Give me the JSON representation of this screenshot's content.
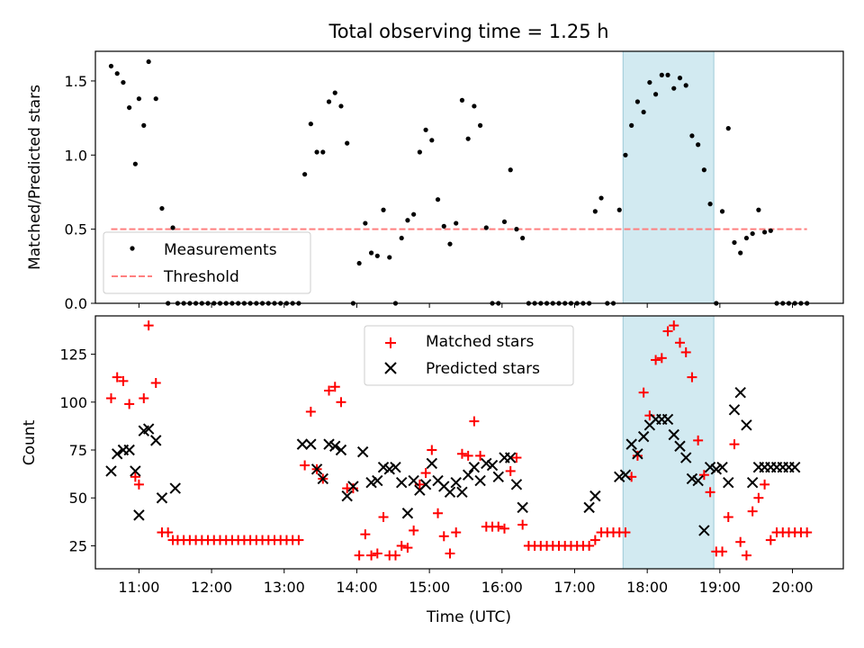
{
  "chart_data": [
    {
      "type": "scatter",
      "title": "Total observing time = 1.25 h",
      "xlabel": "",
      "ylabel": "Matched/Predicted stars",
      "xlim": [
        "10:24",
        "20:42"
      ],
      "ylim": [
        0,
        1.7
      ],
      "yticks": [
        "0.0",
        "0.5",
        "1.0",
        "1.5"
      ],
      "grid": false,
      "legend_position": "lower-left",
      "highlight_region": {
        "x_start": "17:40",
        "x_end": "18:55",
        "color": "#add8e6"
      },
      "series": [
        {
          "name": "Measurements",
          "marker": "dot",
          "color": "#000000",
          "x": [
            "10:37",
            "10:42",
            "10:47",
            "10:52",
            "10:57",
            "11:00",
            "11:04",
            "11:08",
            "11:14",
            "11:19",
            "11:24",
            "11:28",
            "11:32",
            "11:37",
            "11:42",
            "11:47",
            "11:52",
            "11:57",
            "12:02",
            "12:07",
            "12:12",
            "12:17",
            "12:22",
            "12:27",
            "12:32",
            "12:37",
            "12:42",
            "12:47",
            "12:52",
            "12:57",
            "13:02",
            "13:07",
            "13:12",
            "13:17",
            "13:22",
            "13:27",
            "13:32",
            "13:37",
            "13:42",
            "13:47",
            "13:52",
            "13:57",
            "14:02",
            "14:07",
            "14:12",
            "14:17",
            "14:22",
            "14:27",
            "14:32",
            "14:37",
            "14:42",
            "14:47",
            "14:52",
            "14:57",
            "15:02",
            "15:07",
            "15:12",
            "15:17",
            "15:22",
            "15:27",
            "15:32",
            "15:37",
            "15:42",
            "15:47",
            "15:52",
            "15:57",
            "16:02",
            "16:07",
            "16:12",
            "16:17",
            "16:22",
            "16:27",
            "16:32",
            "16:37",
            "16:42",
            "16:47",
            "16:52",
            "16:57",
            "17:02",
            "17:07",
            "17:12",
            "17:17",
            "17:22",
            "17:27",
            "17:32",
            "17:37",
            "17:42",
            "17:47",
            "17:52",
            "17:57",
            "18:02",
            "18:07",
            "18:12",
            "18:17",
            "18:22",
            "18:27",
            "18:32",
            "18:37",
            "18:42",
            "18:47",
            "18:52",
            "18:57",
            "19:02",
            "19:07",
            "19:12",
            "19:17",
            "19:22",
            "19:27",
            "19:32",
            "19:37",
            "19:42",
            "19:47",
            "19:52",
            "19:57",
            "20:02",
            "20:07",
            "20:12"
          ],
          "y": [
            1.6,
            1.55,
            1.49,
            1.32,
            0.94,
            1.38,
            1.2,
            1.63,
            1.38,
            0.64,
            0.0,
            0.51,
            0.0,
            0.0,
            0.0,
            0.0,
            0.0,
            0.0,
            0.0,
            0.0,
            0.0,
            0.0,
            0.0,
            0.0,
            0.0,
            0.0,
            0.0,
            0.0,
            0.0,
            0.0,
            0.0,
            0.0,
            0.0,
            0.87,
            1.21,
            1.02,
            1.02,
            1.36,
            1.42,
            1.33,
            1.08,
            0.0,
            0.27,
            0.54,
            0.34,
            0.32,
            0.63,
            0.31,
            0.0,
            0.44,
            0.56,
            0.6,
            1.02,
            1.17,
            1.1,
            0.7,
            0.52,
            0.4,
            0.54,
            1.37,
            1.11,
            1.33,
            1.2,
            0.51,
            0.0,
            0.0,
            0.55,
            0.9,
            0.5,
            0.44,
            0.0,
            0.0,
            0.0,
            0.0,
            0.0,
            0.0,
            0.0,
            0.0,
            0.0,
            0.0,
            0.0,
            0.62,
            0.71,
            0.0,
            0.0,
            0.63,
            1.0,
            1.2,
            1.36,
            1.29,
            1.49,
            1.41,
            1.54,
            1.54,
            1.45,
            1.52,
            1.47,
            1.13,
            1.07,
            0.9,
            0.67,
            0.0,
            0.62,
            1.18,
            0.41,
            0.34,
            0.44,
            0.47,
            0.63,
            0.48,
            0.49,
            0.0,
            0.0,
            0.0,
            0.0,
            0.0,
            0.0
          ]
        },
        {
          "name": "Threshold",
          "style": "dashed",
          "color": "#ff7f7f",
          "x": [
            "10:37",
            "20:12"
          ],
          "y": [
            0.5,
            0.5
          ]
        }
      ]
    },
    {
      "type": "scatter",
      "title": "",
      "xlabel": "Time (UTC)",
      "ylabel": "Count",
      "xlim": [
        "10:24",
        "20:42"
      ],
      "ylim": [
        13,
        145
      ],
      "xticks": [
        "11:00",
        "12:00",
        "13:00",
        "14:00",
        "15:00",
        "16:00",
        "17:00",
        "18:00",
        "19:00",
        "20:00"
      ],
      "yticks": [
        "25",
        "50",
        "75",
        "100",
        "125"
      ],
      "grid": false,
      "legend_position": "upper-center",
      "highlight_region": {
        "x_start": "17:40",
        "x_end": "18:55",
        "color": "#add8e6"
      },
      "series": [
        {
          "name": "Matched stars",
          "marker": "plus",
          "color": "#ff0000",
          "x": [
            "10:37",
            "10:42",
            "10:47",
            "10:52",
            "10:57",
            "11:00",
            "11:04",
            "11:08",
            "11:14",
            "11:19",
            "11:24",
            "11:28",
            "11:32",
            "11:37",
            "11:42",
            "11:47",
            "11:52",
            "11:57",
            "12:02",
            "12:07",
            "12:12",
            "12:17",
            "12:22",
            "12:27",
            "12:32",
            "12:37",
            "12:42",
            "12:47",
            "12:52",
            "12:57",
            "13:02",
            "13:07",
            "13:12",
            "13:17",
            "13:22",
            "13:27",
            "13:32",
            "13:37",
            "13:42",
            "13:47",
            "13:52",
            "13:57",
            "14:02",
            "14:07",
            "14:12",
            "14:17",
            "14:22",
            "14:27",
            "14:32",
            "14:37",
            "14:42",
            "14:47",
            "14:52",
            "14:57",
            "15:02",
            "15:07",
            "15:12",
            "15:17",
            "15:22",
            "15:27",
            "15:32",
            "15:37",
            "15:42",
            "15:47",
            "15:52",
            "15:57",
            "16:02",
            "16:07",
            "16:12",
            "16:17",
            "16:22",
            "16:27",
            "16:32",
            "16:37",
            "16:42",
            "16:47",
            "16:52",
            "16:57",
            "17:02",
            "17:07",
            "17:12",
            "17:17",
            "17:22",
            "17:27",
            "17:32",
            "17:37",
            "17:42",
            "17:47",
            "17:52",
            "17:57",
            "18:02",
            "18:07",
            "18:12",
            "18:17",
            "18:22",
            "18:27",
            "18:32",
            "18:37",
            "18:42",
            "18:47",
            "18:52",
            "18:57",
            "19:02",
            "19:07",
            "19:12",
            "19:17",
            "19:22",
            "19:27",
            "19:32",
            "19:37",
            "19:42",
            "19:47",
            "19:52",
            "19:57",
            "20:02",
            "20:07",
            "20:12"
          ],
          "y": [
            102,
            113,
            111,
            99,
            61,
            57,
            102,
            140,
            110,
            32,
            32,
            28,
            28,
            28,
            28,
            28,
            28,
            28,
            28,
            28,
            28,
            28,
            28,
            28,
            28,
            28,
            28,
            28,
            28,
            28,
            28,
            28,
            28,
            67,
            95,
            65,
            60,
            106,
            108,
            100,
            55,
            55,
            20,
            31,
            20,
            21,
            40,
            20,
            20,
            25,
            24,
            33,
            57,
            63,
            75,
            42,
            30,
            21,
            32,
            73,
            72,
            90,
            72,
            35,
            35,
            35,
            34,
            64,
            71,
            36,
            25,
            25,
            25,
            25,
            25,
            25,
            25,
            25,
            25,
            25,
            25,
            28,
            32,
            32,
            32,
            32,
            32,
            61,
            72,
            105,
            93,
            122,
            123,
            137,
            140,
            131,
            126,
            113,
            80,
            62,
            53,
            22,
            22,
            40,
            78,
            27,
            20,
            43,
            50,
            57,
            28,
            32,
            32,
            32,
            32,
            32,
            32
          ]
        },
        {
          "name": "Predicted stars",
          "marker": "x",
          "color": "#000000",
          "x": [
            "10:37",
            "10:42",
            "10:47",
            "10:52",
            "10:57",
            "11:00",
            "11:04",
            "11:08",
            "11:14",
            "11:19",
            "11:30",
            "13:15",
            "13:22",
            "13:27",
            "13:32",
            "13:37",
            "13:42",
            "13:47",
            "13:52",
            "13:57",
            "14:05",
            "14:12",
            "14:17",
            "14:22",
            "14:27",
            "14:32",
            "14:37",
            "14:42",
            "14:47",
            "14:52",
            "14:57",
            "15:02",
            "15:07",
            "15:12",
            "15:17",
            "15:22",
            "15:27",
            "15:32",
            "15:37",
            "15:42",
            "15:47",
            "15:52",
            "15:57",
            "16:02",
            "16:07",
            "16:12",
            "16:17",
            "17:12",
            "17:17",
            "17:37",
            "17:42",
            "17:47",
            "17:52",
            "17:57",
            "18:02",
            "18:07",
            "18:12",
            "18:17",
            "18:22",
            "18:27",
            "18:32",
            "18:37",
            "18:42",
            "18:47",
            "18:52",
            "18:57",
            "19:02",
            "19:07",
            "19:12",
            "19:17",
            "19:22",
            "19:27",
            "19:32",
            "19:37",
            "19:42",
            "19:47",
            "19:52",
            "19:57",
            "20:02"
          ],
          "y": [
            64,
            73,
            75,
            75,
            64,
            41,
            85,
            86,
            80,
            50,
            55,
            78,
            78,
            65,
            60,
            78,
            77,
            75,
            51,
            56,
            74,
            58,
            59,
            66,
            65,
            66,
            58,
            42,
            59,
            54,
            57,
            68,
            59,
            56,
            53,
            58,
            53,
            62,
            66,
            59,
            68,
            67,
            61,
            71,
            71,
            57,
            45,
            45,
            51,
            61,
            62,
            78,
            73,
            82,
            88,
            91,
            91,
            91,
            83,
            77,
            71,
            60,
            59,
            33,
            66,
            65,
            66,
            58,
            96,
            105,
            88,
            58,
            66,
            66,
            66,
            66,
            66,
            66,
            66
          ]
        }
      ]
    }
  ]
}
